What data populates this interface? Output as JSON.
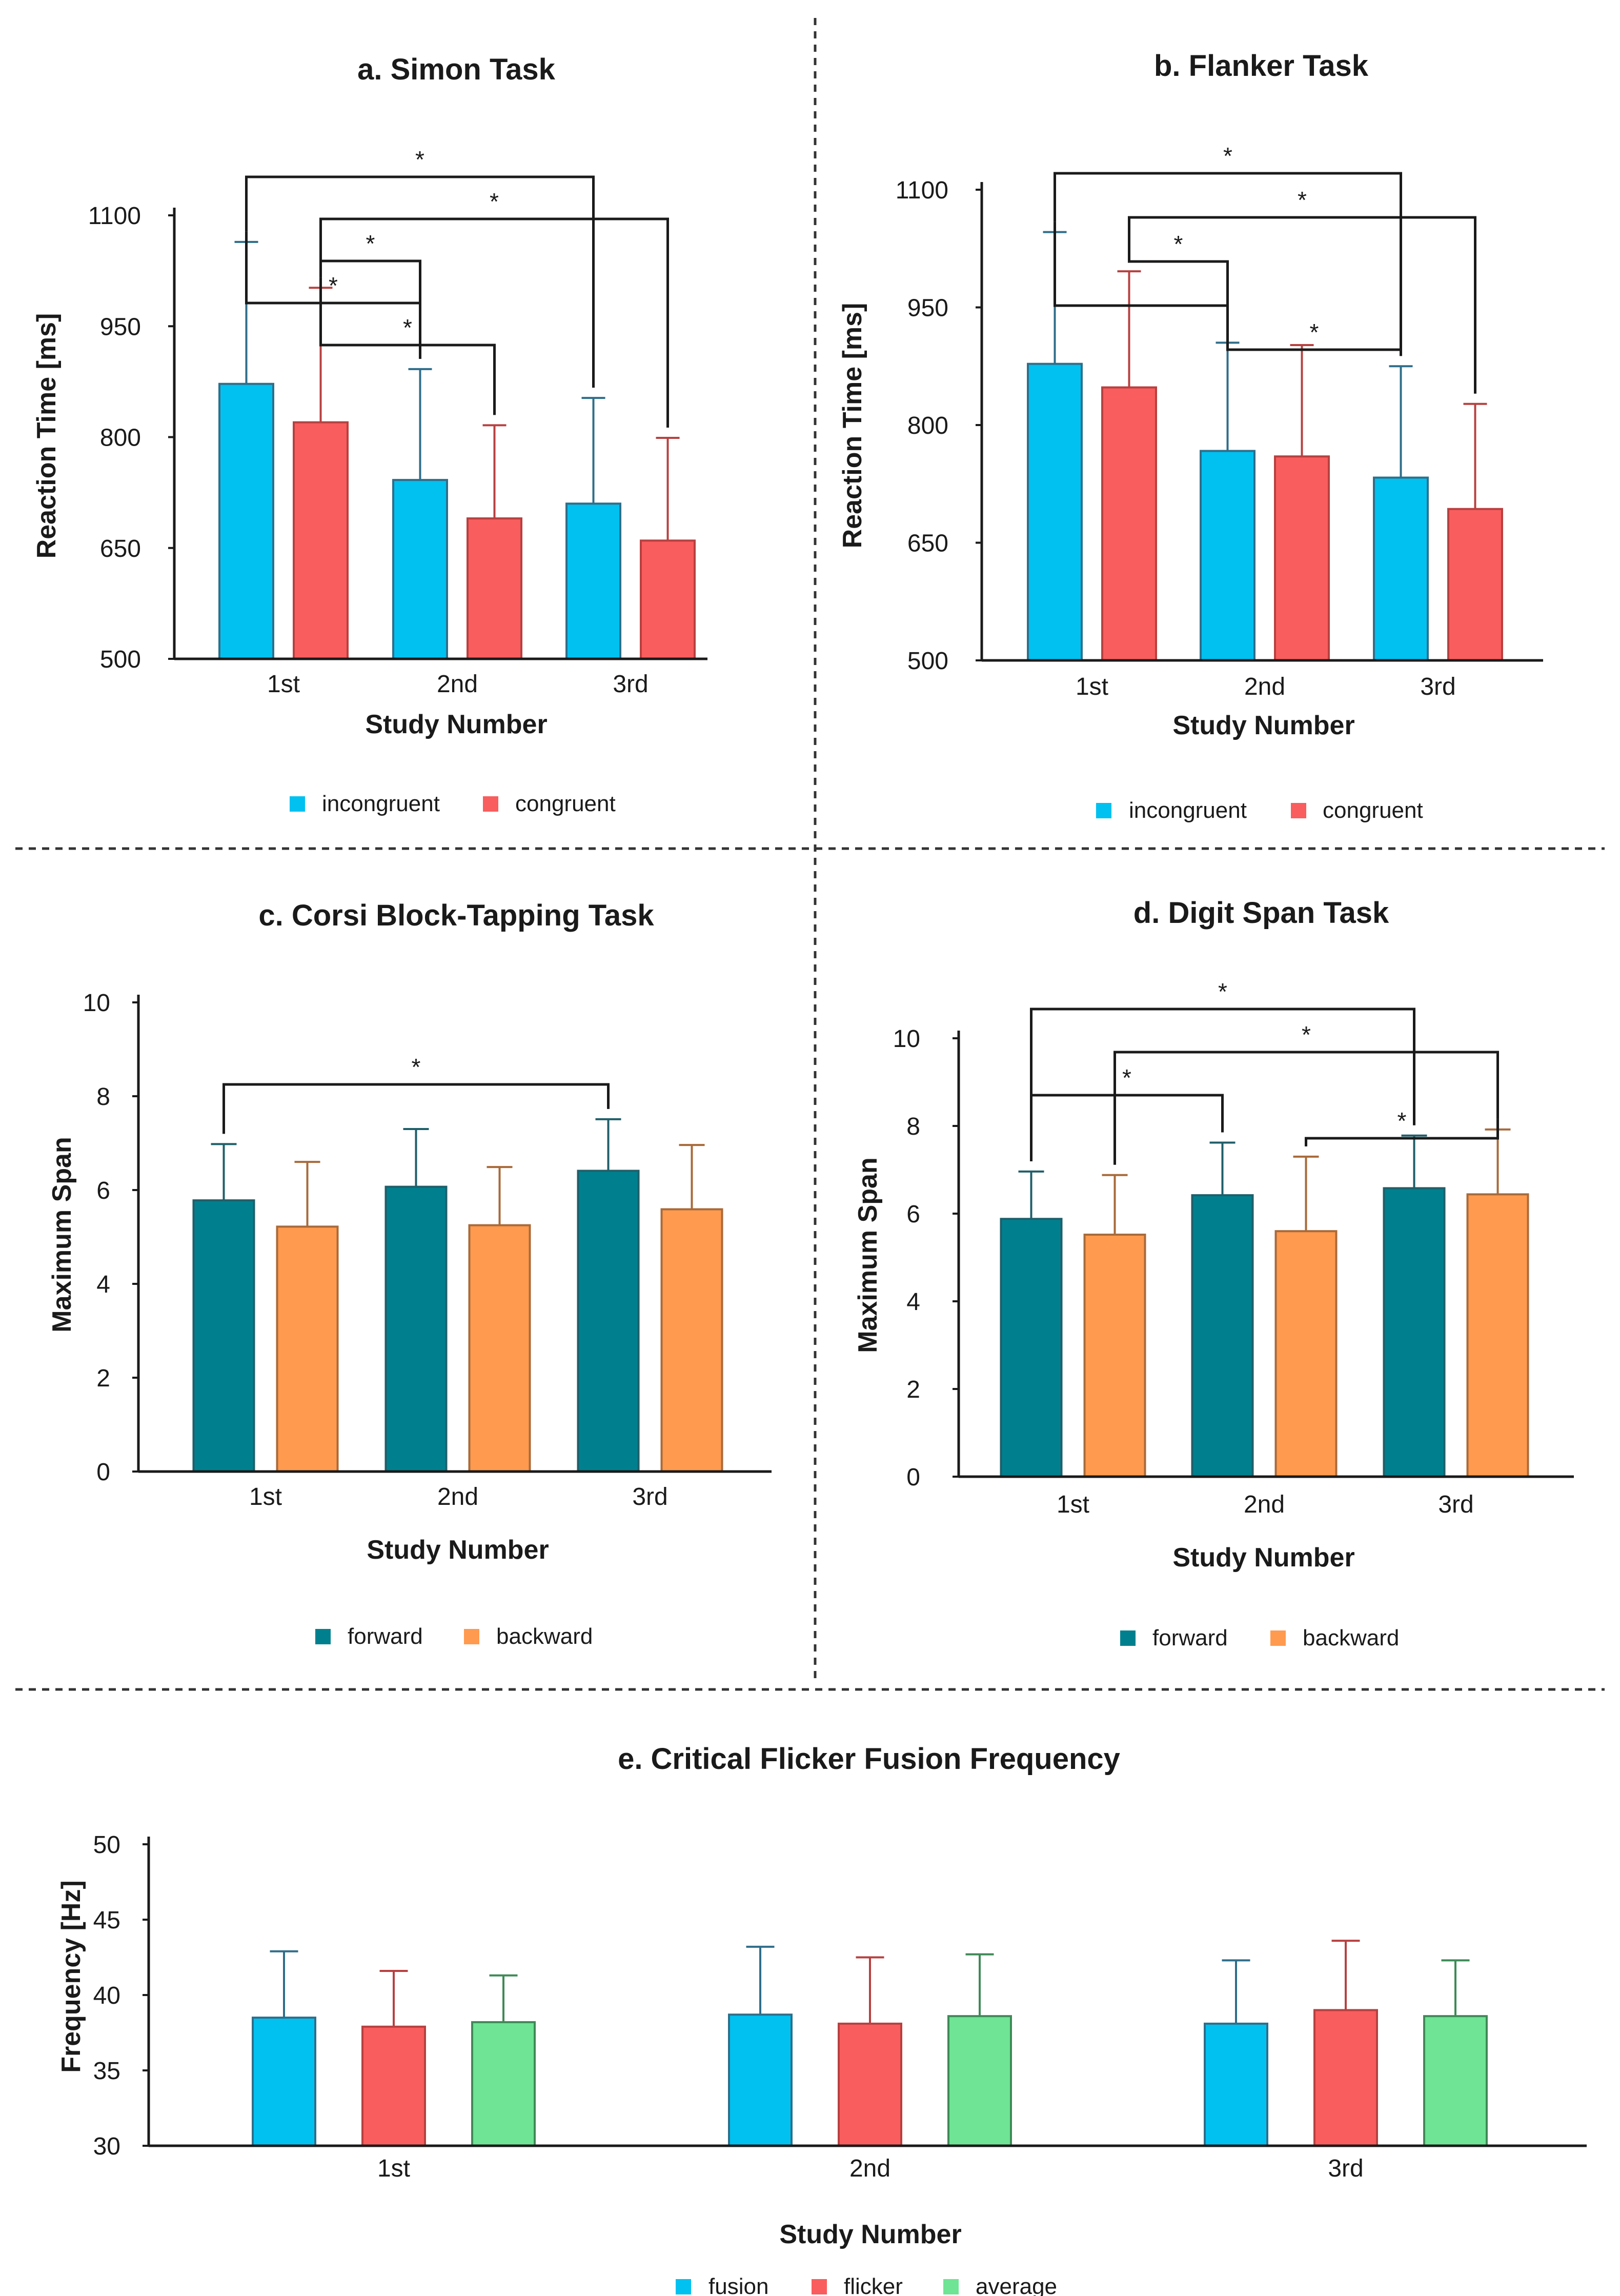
{
  "chart_data": [
    {
      "id": "a",
      "type": "bar",
      "title": "a. Simon Task",
      "xlabel": "Study Number",
      "ylabel": "Reaction Time [ms]",
      "categories": [
        "1st",
        "2nd",
        "3rd"
      ],
      "ylim": [
        500,
        1100
      ],
      "yticks": [
        500,
        650,
        800,
        950,
        1100
      ],
      "series": [
        {
          "name": "incongruent",
          "color": "#00C1F0",
          "error_color": "#2F6E8A",
          "values": [
            872,
            742,
            710
          ],
          "errors": [
            192,
            150,
            143
          ]
        },
        {
          "name": "congruent",
          "color": "#F95D5D",
          "error_color": "#B84040",
          "values": [
            820,
            690,
            660
          ],
          "errors": [
            182,
            126,
            139
          ]
        }
      ],
      "significance": [
        {
          "from": [
            0,
            0
          ],
          "to": [
            2,
            0
          ],
          "label": "*"
        },
        {
          "from": [
            0,
            1
          ],
          "to": [
            2,
            1
          ],
          "label": "*"
        },
        {
          "from": [
            0,
            1
          ],
          "to": [
            1,
            0
          ],
          "label": "*"
        },
        {
          "from": [
            0,
            0
          ],
          "to": [
            1,
            0
          ],
          "label": "*"
        },
        {
          "from": [
            0,
            1
          ],
          "to": [
            1,
            1
          ],
          "label": "*"
        }
      ]
    },
    {
      "id": "b",
      "type": "bar",
      "title": "b. Flanker Task",
      "xlabel": "Study Number",
      "ylabel": "Reaction Time [ms]",
      "categories": [
        "1st",
        "2nd",
        "3rd"
      ],
      "ylim": [
        500,
        1100
      ],
      "yticks": [
        500,
        650,
        800,
        950,
        1100
      ],
      "series": [
        {
          "name": "incongruent",
          "color": "#00C1F0",
          "error_color": "#2F6E8A",
          "values": [
            878,
            767,
            733
          ],
          "errors": [
            168,
            138,
            142
          ]
        },
        {
          "name": "congruent",
          "color": "#F95D5D",
          "error_color": "#B84040",
          "values": [
            848,
            760,
            693
          ],
          "errors": [
            148,
            142,
            134
          ]
        }
      ],
      "significance": [
        {
          "from": [
            0,
            0
          ],
          "to": [
            2,
            0
          ],
          "label": "*"
        },
        {
          "from": [
            0,
            1
          ],
          "to": [
            2,
            1
          ],
          "label": "*"
        },
        {
          "from": [
            0,
            1
          ],
          "to": [
            1,
            0
          ],
          "label": "*"
        },
        {
          "from": [
            0,
            0
          ],
          "to": [
            1,
            0
          ],
          "label": ""
        },
        {
          "from": [
            1,
            0
          ],
          "to": [
            2,
            0
          ],
          "label": "*"
        }
      ]
    },
    {
      "id": "c",
      "type": "bar",
      "title": "c. Corsi Block-Tapping Task",
      "xlabel": "Study Number",
      "ylabel": "Maximum Span",
      "categories": [
        "1st",
        "2nd",
        "3rd"
      ],
      "ylim": [
        0,
        10
      ],
      "yticks": [
        0,
        2,
        4,
        6,
        8,
        10
      ],
      "series": [
        {
          "name": "forward",
          "color": "#00808E",
          "error_color": "#1F5F6A",
          "values": [
            5.78,
            6.07,
            6.41
          ],
          "errors": [
            1.2,
            1.23,
            1.1
          ]
        },
        {
          "name": "backward",
          "color": "#FF9A4F",
          "error_color": "#A86A3A",
          "values": [
            5.22,
            5.25,
            5.59
          ],
          "errors": [
            1.38,
            1.24,
            1.37
          ]
        }
      ],
      "significance": [
        {
          "from": [
            0,
            0
          ],
          "to": [
            2,
            0
          ],
          "label": "*"
        }
      ]
    },
    {
      "id": "d",
      "type": "bar",
      "title": "d. Digit Span Task",
      "xlabel": "Study Number",
      "ylabel": "Maximum Span",
      "categories": [
        "1st",
        "2nd",
        "3rd"
      ],
      "ylim": [
        0,
        10
      ],
      "yticks": [
        0,
        2,
        4,
        6,
        8,
        10
      ],
      "series": [
        {
          "name": "forward",
          "color": "#00808E",
          "error_color": "#1F5F6A",
          "values": [
            5.88,
            6.42,
            6.58
          ],
          "errors": [
            1.08,
            1.2,
            1.2
          ]
        },
        {
          "name": "backward",
          "color": "#FF9A4F",
          "error_color": "#A86A3A",
          "values": [
            5.52,
            5.6,
            6.44
          ],
          "errors": [
            1.36,
            1.7,
            1.48
          ]
        }
      ],
      "significance": [
        {
          "from": [
            0,
            0
          ],
          "to": [
            2,
            0
          ],
          "label": "*"
        },
        {
          "from": [
            0,
            1
          ],
          "to": [
            2,
            1
          ],
          "label": "*"
        },
        {
          "from": [
            0,
            0
          ],
          "to": [
            1,
            0
          ],
          "label": "*"
        },
        {
          "from": [
            1,
            1
          ],
          "to": [
            2,
            1
          ],
          "label": "*"
        }
      ]
    },
    {
      "id": "e",
      "type": "bar",
      "title": "e. Critical Flicker Fusion Frequency",
      "xlabel": "Study Number",
      "ylabel": "Frequency [Hz]",
      "categories": [
        "1st",
        "2nd",
        "3rd"
      ],
      "ylim": [
        30,
        50
      ],
      "yticks": [
        30,
        35,
        40,
        45,
        50
      ],
      "series": [
        {
          "name": "fusion",
          "color": "#00C1F0",
          "error_color": "#2F6E8A",
          "values": [
            38.5,
            38.7,
            38.1
          ],
          "errors": [
            4.4,
            4.5,
            4.2
          ]
        },
        {
          "name": "flicker",
          "color": "#F95D5D",
          "error_color": "#B84040",
          "values": [
            37.9,
            38.1,
            39.0
          ],
          "errors": [
            3.7,
            4.4,
            4.6
          ]
        },
        {
          "name": "average",
          "color": "#6EE494",
          "error_color": "#3E8A57",
          "values": [
            38.2,
            38.6,
            38.6
          ],
          "errors": [
            3.1,
            4.1,
            3.7
          ]
        }
      ],
      "significance": []
    }
  ]
}
